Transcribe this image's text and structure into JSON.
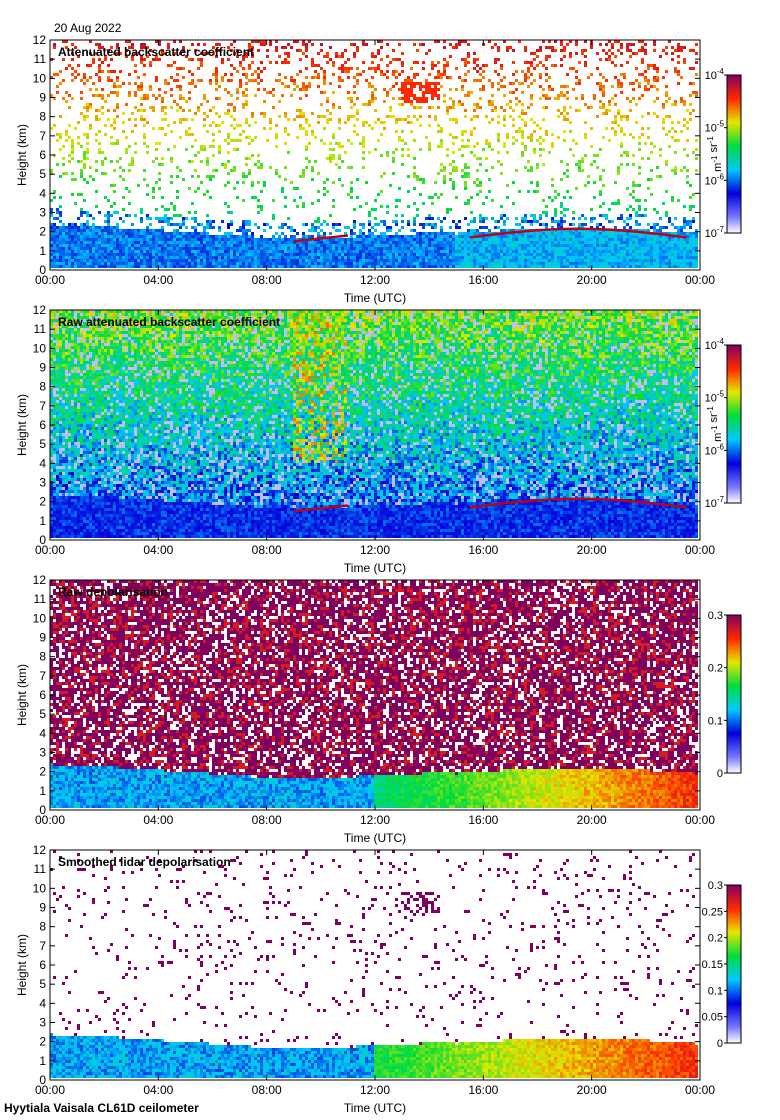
{
  "date": "20 Aug 2022",
  "footer": "Hyytiala Vaisala CL61D ceilometer",
  "colors": {
    "cloud_base": "#c0001a",
    "background": "#ffffff"
  },
  "chart_data": [
    {
      "type": "heatmap",
      "title": "Attenuated backscatter coefficient",
      "xlabel": "Time (UTC)",
      "ylabel": "Height (km)",
      "xlim": [
        "00:00",
        "24:00"
      ],
      "ylim": [
        0,
        12
      ],
      "x_ticks": [
        "00:00",
        "04:00",
        "08:00",
        "12:00",
        "16:00",
        "20:00",
        "00:00"
      ],
      "y_ticks": [
        "0",
        "1",
        "2",
        "3",
        "4",
        "5",
        "6",
        "7",
        "8",
        "9",
        "10",
        "11",
        "12"
      ],
      "colorbar": {
        "scale": "log",
        "range": [
          1e-07,
          0.0001
        ],
        "tick_base": [
          "10",
          "10",
          "10",
          "10"
        ],
        "tick_exp": [
          "-7",
          "-6",
          "-5",
          "-4"
        ],
        "units_main": [
          "m",
          "sr"
        ],
        "units_exp": [
          "-1",
          "-1"
        ]
      }
    },
    {
      "type": "heatmap",
      "title": "Raw attenuated backscatter coefficient",
      "xlabel": "Time (UTC)",
      "ylabel": "Height (km)",
      "xlim": [
        "00:00",
        "24:00"
      ],
      "ylim": [
        0,
        12
      ],
      "x_ticks": [
        "00:00",
        "04:00",
        "08:00",
        "12:00",
        "16:00",
        "20:00",
        "00:00"
      ],
      "y_ticks": [
        "0",
        "1",
        "2",
        "3",
        "4",
        "5",
        "6",
        "7",
        "8",
        "9",
        "10",
        "11",
        "12"
      ],
      "colorbar": {
        "scale": "log",
        "range": [
          1e-07,
          0.0001
        ],
        "tick_base": [
          "10",
          "10",
          "10",
          "10"
        ],
        "tick_exp": [
          "-7",
          "-6",
          "-5",
          "-4"
        ],
        "units_main": [
          "m",
          "sr"
        ],
        "units_exp": [
          "-1",
          "-1"
        ]
      }
    },
    {
      "type": "heatmap",
      "title": "Raw depolarisation",
      "xlabel": "Time (UTC)",
      "ylabel": "Height (km)",
      "xlim": [
        "00:00",
        "24:00"
      ],
      "ylim": [
        0,
        12
      ],
      "x_ticks": [
        "00:00",
        "04:00",
        "08:00",
        "12:00",
        "16:00",
        "20:00",
        "00:00"
      ],
      "y_ticks": [
        "0",
        "1",
        "2",
        "3",
        "4",
        "5",
        "6",
        "7",
        "8",
        "9",
        "10",
        "11",
        "12"
      ],
      "colorbar": {
        "scale": "linear",
        "range": [
          0,
          0.3
        ],
        "ticks": [
          "0",
          "0.1",
          "0.2",
          "0.3"
        ]
      }
    },
    {
      "type": "heatmap",
      "title": "Smoothed lidar depolarisation",
      "xlabel": "Time (UTC)",
      "ylabel": "Height (km)",
      "xlim": [
        "00:00",
        "24:00"
      ],
      "ylim": [
        0,
        12
      ],
      "x_ticks": [
        "00:00",
        "04:00",
        "08:00",
        "12:00",
        "16:00",
        "20:00",
        "00:00"
      ],
      "y_ticks": [
        "0",
        "1",
        "2",
        "3",
        "4",
        "5",
        "6",
        "7",
        "8",
        "9",
        "10",
        "11",
        "12"
      ],
      "colorbar": {
        "scale": "linear",
        "range": [
          0,
          0.3
        ],
        "ticks": [
          "0",
          "0.05",
          "0.1",
          "0.15",
          "0.2",
          "0.25",
          "0.3"
        ]
      }
    }
  ]
}
